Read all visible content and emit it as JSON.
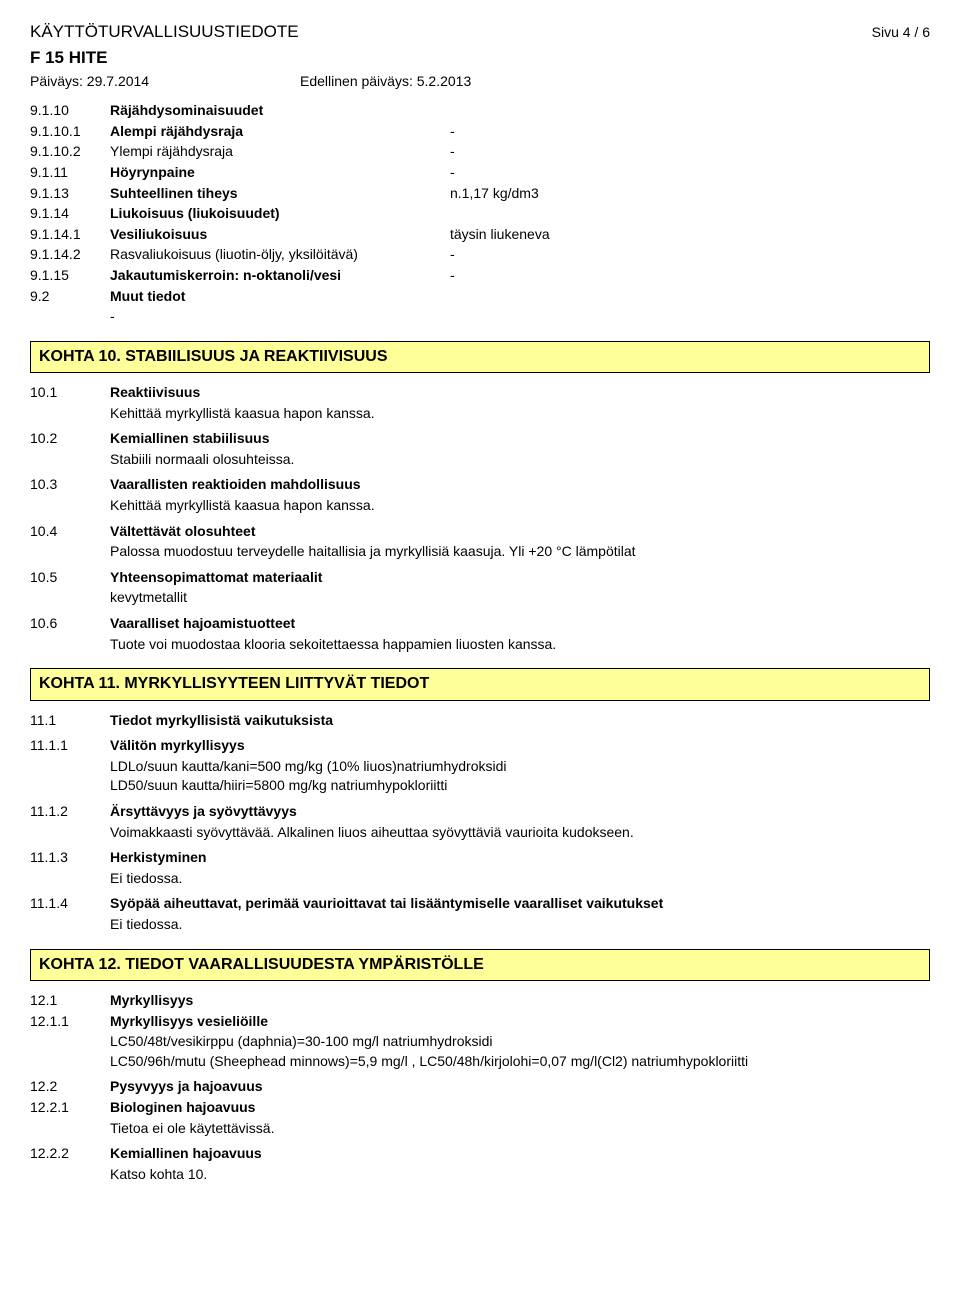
{
  "header": {
    "doc_title": "KÄYTTÖTURVALLISUUSTIEDOTE",
    "page": "Sivu 4 / 6",
    "product": "F 15 HITE",
    "date_label": "Päiväys: 29.7.2014",
    "prev_date_label": "Edellinen päiväys: 5.2.2013"
  },
  "section9": {
    "r1": {
      "num": "9.1.10",
      "label": "Räjähdysominaisuudet",
      "val": ""
    },
    "r2": {
      "num": "9.1.10.1",
      "label": "Alempi räjähdysraja",
      "val": "-"
    },
    "r3": {
      "num": "9.1.10.2",
      "label": "Ylempi räjähdysraja",
      "val": "-"
    },
    "r4": {
      "num": "9.1.11",
      "label": "Höyrynpaine",
      "val": "-"
    },
    "r5": {
      "num": "9.1.13",
      "label": "Suhteellinen tiheys",
      "val": "n.1,17 kg/dm3"
    },
    "r6": {
      "num": "9.1.14",
      "label": "Liukoisuus (liukoisuudet)",
      "val": ""
    },
    "r7": {
      "num": "9.1.14.1",
      "label": "Vesiliukoisuus",
      "val": "täysin liukeneva"
    },
    "r8": {
      "num": "9.1.14.2",
      "label": "Rasvaliukoisuus (liuotin-öljy, yksilöitävä)",
      "val": "-"
    },
    "r9": {
      "num": "9.1.15",
      "label": "Jakautumiskerroin: n-oktanoli/vesi",
      "val": "-"
    },
    "r10": {
      "num": "9.2",
      "label": "Muut tiedot",
      "val": ""
    },
    "r10_body": "-"
  },
  "section10": {
    "title": "KOHTA 10. STABIILISUUS JA REAKTIIVISUUS",
    "r1": {
      "num": "10.1",
      "label": "Reaktiivisuus",
      "body": "Kehittää myrkyllistä kaasua hapon kanssa."
    },
    "r2": {
      "num": "10.2",
      "label": "Kemiallinen stabiilisuus",
      "body": "Stabiili normaali olosuhteissa."
    },
    "r3": {
      "num": "10.3",
      "label": "Vaarallisten reaktioiden mahdollisuus",
      "body": "Kehittää myrkyllistä kaasua hapon kanssa."
    },
    "r4": {
      "num": "10.4",
      "label": "Vältettävät olosuhteet",
      "body": "Palossa muodostuu terveydelle haitallisia ja myrkyllisiä kaasuja. Yli +20 °C lämpötilat"
    },
    "r5": {
      "num": "10.5",
      "label": "Yhteensopimattomat materiaalit",
      "body": "kevytmetallit"
    },
    "r6": {
      "num": "10.6",
      "label": "Vaaralliset hajoamistuotteet",
      "body": "Tuote voi muodostaa klooria sekoitettaessa happamien liuosten kanssa."
    }
  },
  "section11": {
    "title": "KOHTA 11. MYRKYLLISYYTEEN LIITTYVÄT TIEDOT",
    "r1": {
      "num": "11.1",
      "label": "Tiedot myrkyllisistä vaikutuksista"
    },
    "r2": {
      "num": "11.1.1",
      "label": "Välitön myrkyllisyys",
      "body1": "LDLo/suun kautta/kani=500 mg/kg (10% liuos)natriumhydroksidi",
      "body2": "LD50/suun kautta/hiiri=5800 mg/kg natriumhypokloriitti"
    },
    "r3": {
      "num": "11.1.2",
      "label": "Ärsyttävyys ja syövyttävyys",
      "body": "Voimakkaasti syövyttävää.   Alkalinen liuos aiheuttaa syövyttäviä vaurioita kudokseen."
    },
    "r4": {
      "num": "11.1.3",
      "label": "Herkistyminen",
      "body": "Ei tiedossa."
    },
    "r5": {
      "num": "11.1.4",
      "label": "Syöpää aiheuttavat, perimää vaurioittavat tai lisääntymiselle vaaralliset vaikutukset",
      "body": "Ei tiedossa."
    }
  },
  "section12": {
    "title": "KOHTA 12. TIEDOT VAARALLISUUDESTA YMPÄRISTÖLLE",
    "r1": {
      "num": "12.1",
      "label": "Myrkyllisyys"
    },
    "r2": {
      "num": "12.1.1",
      "label": "Myrkyllisyys vesieliöille",
      "body1": "LC50/48t/vesikirppu (daphnia)=30-100 mg/l natriumhydroksidi",
      "body2": "LC50/96h/mutu (Sheephead minnows)=5,9 mg/l , LC50/48h/kirjolohi=0,07 mg/l(Cl2) natriumhypokloriitti"
    },
    "r3": {
      "num": "12.2",
      "label": "Pysyvyys ja hajoavuus"
    },
    "r4": {
      "num": "12.2.1",
      "label": "Biologinen hajoavuus",
      "body": "Tietoa ei ole käytettävissä."
    },
    "r5": {
      "num": "12.2.2",
      "label": "Kemiallinen hajoavuus",
      "body": "Katso kohta 10."
    }
  }
}
